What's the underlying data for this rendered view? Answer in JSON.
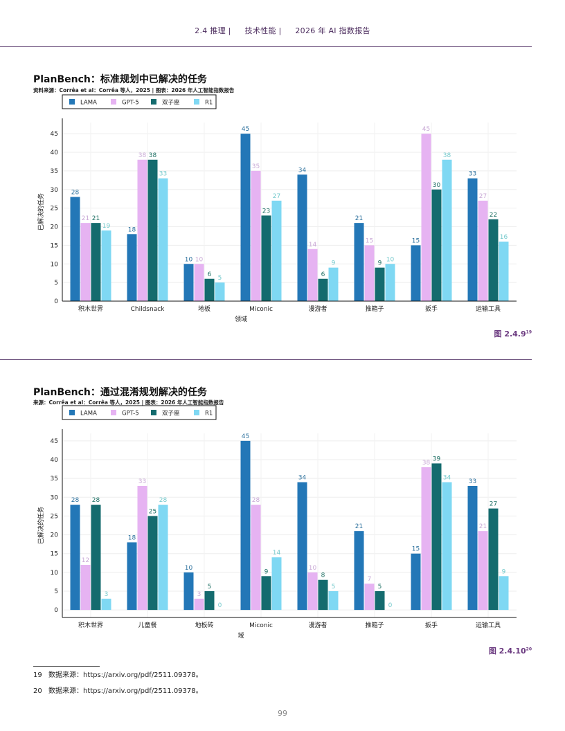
{
  "header": {
    "section": "2.4 推理 |",
    "chapter": "技术性能 |",
    "report": "2026 年 AI 指数报告"
  },
  "colors": {
    "LAMA": "#2377b7",
    "GPT-5": "#e6b3f2",
    "双子座": "#146b6e",
    "R1": "#7fd8f3"
  },
  "chart_data": [
    {
      "type": "bar",
      "title": "PlanBench：标准规划中已解决的任务",
      "source": "资料来源：Corrêa et al：Corrêa 等人，2025 | 图表：2026 年人工智能指数报告",
      "categories": [
        "积木世界",
        "Childsnack",
        "地板",
        "Miconic",
        "漫游者",
        "推箱子",
        "扳手",
        "运输工具"
      ],
      "series": [
        {
          "name": "LAMA",
          "values": [
            28,
            18,
            10,
            45,
            34,
            21,
            15,
            33
          ]
        },
        {
          "name": "GPT-5",
          "values": [
            21,
            38,
            10,
            35,
            14,
            15,
            45,
            27
          ]
        },
        {
          "name": "双子座",
          "values": [
            21,
            38,
            6,
            23,
            6,
            9,
            30,
            22
          ]
        },
        {
          "name": "R1",
          "values": [
            19,
            33,
            5,
            27,
            9,
            10,
            38,
            16
          ]
        }
      ],
      "xlabel": "领域",
      "ylabel": "已解决的任务",
      "yticks": [
        0,
        5,
        10,
        15,
        20,
        25,
        30,
        35,
        40,
        45
      ],
      "ylim": [
        0,
        48
      ],
      "figure_label": "图 2.4.9",
      "figure_note": "19"
    },
    {
      "type": "bar",
      "title": "PlanBench：通过混淆规划解决的任务",
      "source": "来源：Corrêa et al：Corrêa 等人，2025 | 图表：2026 年人工智能指数报告",
      "categories": [
        "积木世界",
        "儿童餐",
        "地板砖",
        "Miconic",
        "漫游者",
        "推箱子",
        "扳手",
        "运输工具"
      ],
      "series": [
        {
          "name": "LAMA",
          "values": [
            28,
            18,
            10,
            45,
            34,
            21,
            15,
            33
          ]
        },
        {
          "name": "GPT-5",
          "values": [
            12,
            33,
            3,
            28,
            10,
            7,
            38,
            21
          ]
        },
        {
          "name": "双子座",
          "values": [
            28,
            25,
            5,
            9,
            8,
            5,
            39,
            27
          ]
        },
        {
          "name": "R1",
          "values": [
            3,
            28,
            0,
            14,
            5,
            0,
            34,
            9
          ]
        }
      ],
      "xlabel": "域",
      "ylabel": "已解决的任务",
      "yticks": [
        0,
        5,
        10,
        15,
        20,
        25,
        30,
        35,
        40,
        45
      ],
      "ylim": [
        -2,
        47
      ],
      "figure_label": "图 2.4.10",
      "figure_note": "20"
    }
  ],
  "footnotes": [
    {
      "num": "19",
      "text": "数据来源：https://arxiv.org/pdf/2511.09378。"
    },
    {
      "num": "20",
      "text": "数据来源：https://arxiv.org/pdf/2511.09378。"
    }
  ],
  "page_number": "99"
}
